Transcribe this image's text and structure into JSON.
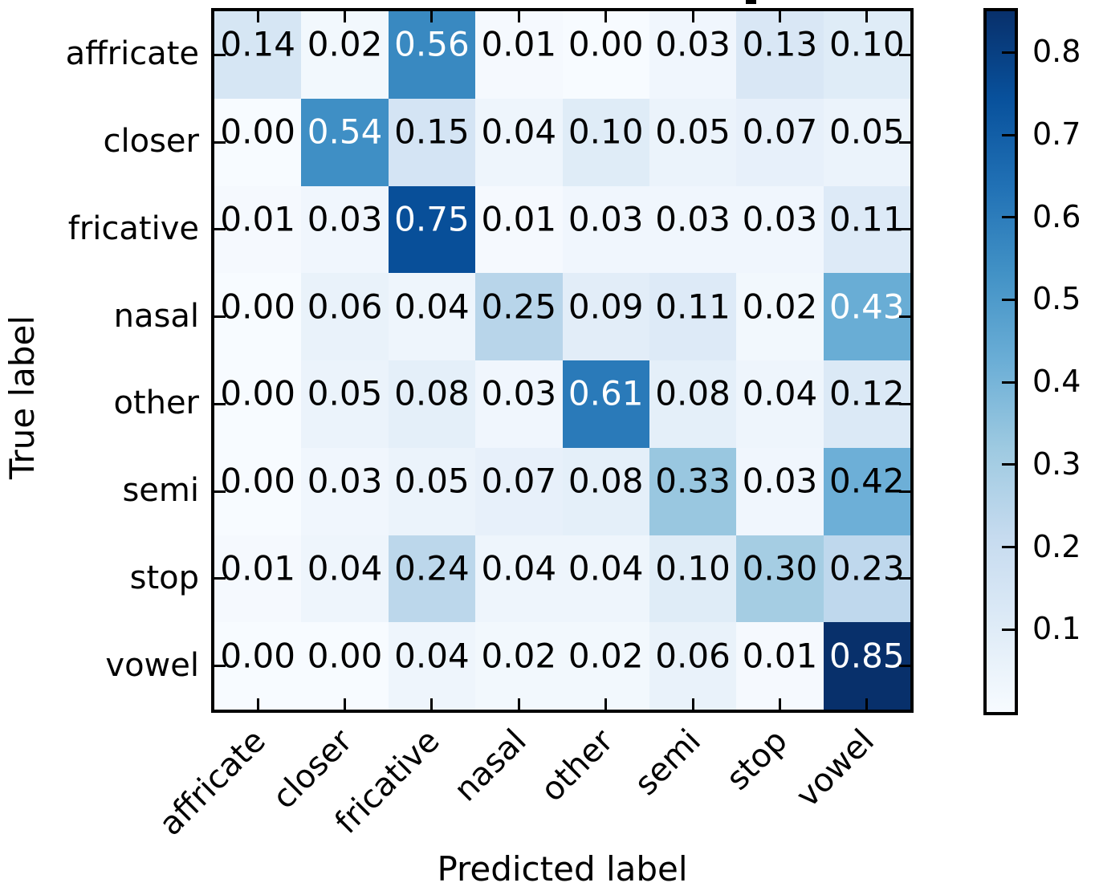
{
  "chart_data": {
    "type": "heatmap",
    "subtype": "confusion-matrix",
    "xlabel": "Predicted label",
    "ylabel": "True label",
    "categories": [
      "affricate",
      "closer",
      "fricative",
      "nasal",
      "other",
      "semi",
      "stop",
      "vowel"
    ],
    "matrix": [
      [
        "0.14",
        "0.02",
        "0.56",
        "0.01",
        "0.00",
        "0.03",
        "0.13",
        "0.10"
      ],
      [
        "0.00",
        "0.54",
        "0.15",
        "0.04",
        "0.10",
        "0.05",
        "0.07",
        "0.05"
      ],
      [
        "0.01",
        "0.03",
        "0.75",
        "0.01",
        "0.03",
        "0.03",
        "0.03",
        "0.11"
      ],
      [
        "0.00",
        "0.06",
        "0.04",
        "0.25",
        "0.09",
        "0.11",
        "0.02",
        "0.43"
      ],
      [
        "0.00",
        "0.05",
        "0.08",
        "0.03",
        "0.61",
        "0.08",
        "0.04",
        "0.12"
      ],
      [
        "0.00",
        "0.03",
        "0.05",
        "0.07",
        "0.08",
        "0.33",
        "0.03",
        "0.42"
      ],
      [
        "0.01",
        "0.04",
        "0.24",
        "0.04",
        "0.04",
        "0.10",
        "0.30",
        "0.23"
      ],
      [
        "0.00",
        "0.00",
        "0.04",
        "0.02",
        "0.02",
        "0.06",
        "0.01",
        "0.85"
      ]
    ],
    "value_range": {
      "vmin": 0,
      "vmax": 0.85
    },
    "colormap": {
      "name": "Blues",
      "anchors": [
        "#f7fbff",
        "#deebf7",
        "#c6dbef",
        "#9ecae1",
        "#6baed6",
        "#4292c6",
        "#2171b5",
        "#08519c",
        "#08306b"
      ]
    },
    "colorbar": {
      "tick_labels": [
        "0.1",
        "0.2",
        "0.3",
        "0.4",
        "0.5",
        "0.6",
        "0.7",
        "0.8"
      ],
      "position": "right"
    },
    "cell_text": {
      "dark_color": "#000000",
      "light_color": "#ffffff",
      "light_threshold": 0.425
    },
    "axis_color": "#000000",
    "grid": false,
    "legend": false
  }
}
